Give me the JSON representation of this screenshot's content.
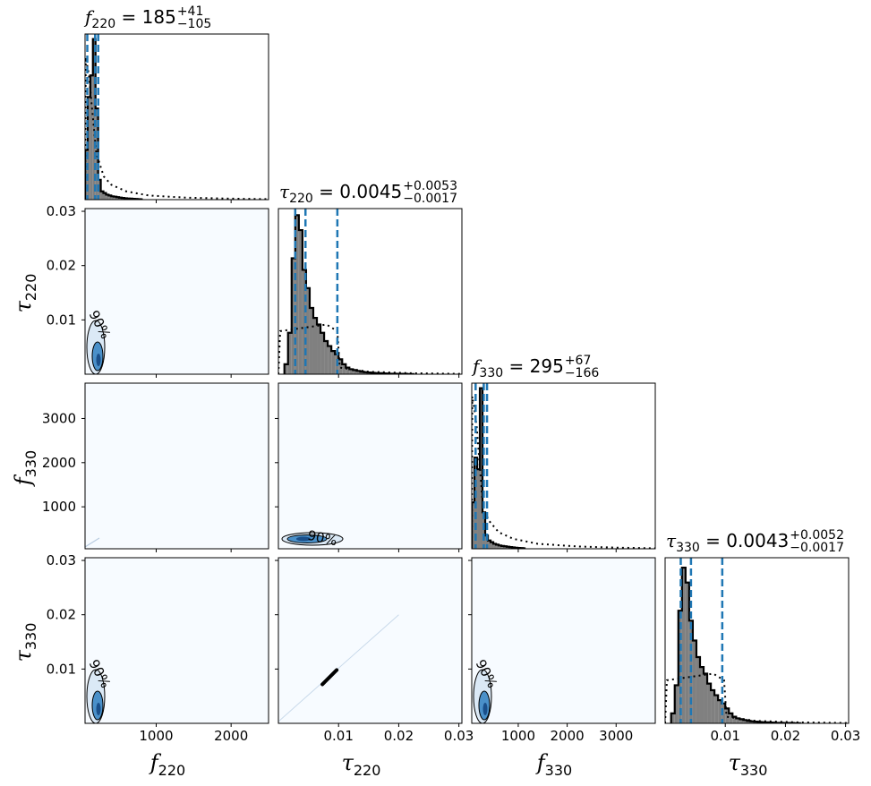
{
  "chart_data": {
    "type": "corner",
    "params": [
      {
        "name": "f",
        "sub": "220",
        "range": [
          50,
          2500
        ],
        "ticks": [
          1000,
          2000
        ]
      },
      {
        "name": "τ",
        "sub": "220",
        "range": [
          0,
          0.0305
        ],
        "ticks": [
          0.01,
          0.02,
          0.03
        ]
      },
      {
        "name": "f",
        "sub": "330",
        "range": [
          50,
          3800
        ],
        "ticks": [
          1000,
          2000,
          3000
        ]
      },
      {
        "name": "τ",
        "sub": "330",
        "range": [
          0,
          0.0305
        ],
        "ticks": [
          0.01,
          0.02,
          0.03
        ]
      }
    ],
    "titles": [
      {
        "lhs": "f",
        "sub": "220",
        "value": "185",
        "plus": "+41",
        "minus": "−105"
      },
      {
        "lhs": "τ",
        "sub": "220",
        "value": "0.0045",
        "plus": "+0.0053",
        "minus": "−0.0017"
      },
      {
        "lhs": "f",
        "sub": "330",
        "value": "295",
        "plus": "+67",
        "minus": "−166"
      },
      {
        "lhs": "τ",
        "sub": "330",
        "value": "0.0043",
        "plus": "+0.0052",
        "minus": "−0.0017"
      }
    ],
    "tick_labels": {
      "f220": [
        "1000",
        "2000"
      ],
      "tau": [
        "0.01",
        "0.02",
        "0.03"
      ],
      "f330": [
        "1000",
        "2000",
        "3000"
      ]
    },
    "quantile_lines": [
      [
        80,
        185,
        226
      ],
      [
        0.0028,
        0.0045,
        0.0098
      ],
      [
        129,
        295,
        362
      ],
      [
        0.0026,
        0.0043,
        0.0095
      ]
    ],
    "histograms": [
      {
        "edges_start": 50,
        "bin_width": 35,
        "counts": [
          0.3,
          0.62,
          0.75,
          0.97,
          0.55,
          0.12,
          0.05,
          0.04,
          0.03,
          0.025,
          0.02,
          0.018,
          0.015,
          0.012,
          0.01,
          0.008,
          0.007,
          0.006,
          0.005,
          0.004,
          0.003,
          0.002
        ]
      },
      {
        "edges_start": 0.001,
        "bin_width": 0.0006,
        "counts": [
          0.06,
          0.25,
          0.7,
          0.96,
          0.87,
          0.63,
          0.52,
          0.4,
          0.34,
          0.3,
          0.25,
          0.2,
          0.17,
          0.14,
          0.12,
          0.09,
          0.06,
          0.04,
          0.03,
          0.025,
          0.02,
          0.015,
          0.012,
          0.01,
          0.008,
          0.007,
          0.006,
          0.005,
          0.004,
          0.003,
          0.003,
          0.002,
          0.002,
          0.002,
          0.001,
          0.001
        ]
      },
      {
        "edges_start": 50,
        "bin_width": 55,
        "counts": [
          0.28,
          0.55,
          0.48,
          0.97,
          0.22,
          0.08,
          0.05,
          0.04,
          0.03,
          0.025,
          0.02,
          0.017,
          0.015,
          0.012,
          0.01,
          0.008,
          0.006,
          0.005,
          0.004,
          0.003
        ]
      },
      {
        "edges_start": 0.001,
        "bin_width": 0.0006,
        "counts": [
          0.06,
          0.23,
          0.68,
          0.94,
          0.85,
          0.62,
          0.5,
          0.4,
          0.34,
          0.3,
          0.24,
          0.2,
          0.17,
          0.14,
          0.12,
          0.09,
          0.06,
          0.04,
          0.03,
          0.025,
          0.02,
          0.015,
          0.012,
          0.01,
          0.008,
          0.007,
          0.006,
          0.005,
          0.004,
          0.003,
          0.003,
          0.002,
          0.002,
          0.002,
          0.001,
          0.001
        ]
      }
    ],
    "prior_curves": [
      [
        [
          50,
          0.0
        ],
        [
          60,
          0.86
        ],
        [
          75,
          0.82
        ],
        [
          100,
          0.76
        ],
        [
          200,
          0.28
        ],
        [
          300,
          0.14
        ],
        [
          400,
          0.09
        ],
        [
          600,
          0.05
        ],
        [
          900,
          0.025
        ],
        [
          1400,
          0.012
        ],
        [
          2000,
          0.006
        ],
        [
          2500,
          0.003
        ]
      ],
      [
        [
          0.0,
          0.0
        ],
        [
          0.0003,
          0.26
        ],
        [
          0.008,
          0.3
        ],
        [
          0.0098,
          0.26
        ],
        [
          0.0102,
          0.04
        ],
        [
          0.015,
          0.015
        ],
        [
          0.022,
          0.006
        ],
        [
          0.0305,
          0.002
        ]
      ],
      [
        [
          50,
          0.0
        ],
        [
          60,
          0.92
        ],
        [
          95,
          0.86
        ],
        [
          150,
          0.74
        ],
        [
          280,
          0.25
        ],
        [
          400,
          0.17
        ],
        [
          600,
          0.1
        ],
        [
          900,
          0.06
        ],
        [
          1400,
          0.03
        ],
        [
          2200,
          0.014
        ],
        [
          3000,
          0.007
        ],
        [
          3800,
          0.003
        ]
      ],
      [
        [
          0.0,
          0.0
        ],
        [
          0.0003,
          0.26
        ],
        [
          0.008,
          0.3
        ],
        [
          0.0098,
          0.26
        ],
        [
          0.0102,
          0.04
        ],
        [
          0.015,
          0.015
        ],
        [
          0.022,
          0.006
        ],
        [
          0.0305,
          0.002
        ]
      ]
    ],
    "contour_label": "90%",
    "colors": {
      "hist_fill": "#808080",
      "hist_edge": "#000000",
      "quantile": "#1f77b4",
      "density_bg": "#f7fbff",
      "contour_fill": "#4a90c9",
      "contour_light": "#dbe9f6",
      "contour_line": "#000000"
    }
  }
}
